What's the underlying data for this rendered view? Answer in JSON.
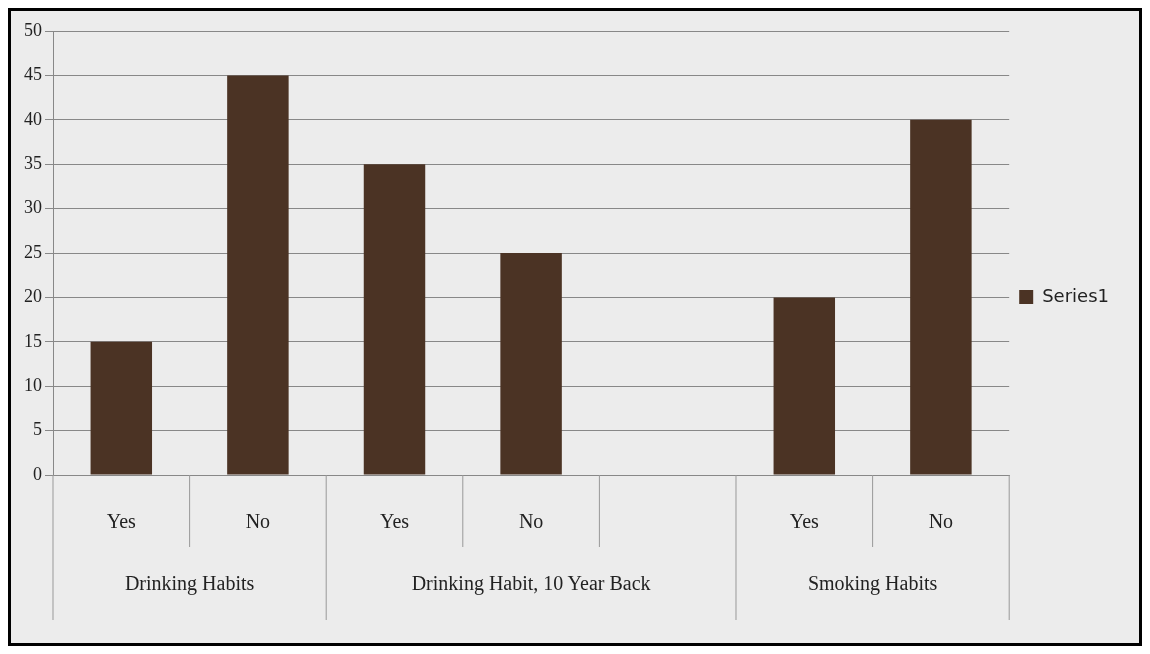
{
  "chart_data": {
    "type": "bar",
    "categories": [
      "Yes",
      "No",
      "Yes",
      "No",
      null,
      "Yes",
      "No"
    ],
    "series": [
      {
        "name": "Series1",
        "color": "#4b3324",
        "values": [
          15,
          45,
          35,
          25,
          null,
          20,
          40
        ]
      }
    ],
    "ylim": [
      0,
      50
    ],
    "yticks": [
      0,
      5,
      10,
      15,
      20,
      25,
      30,
      35,
      40,
      45,
      50
    ],
    "grid": "y",
    "legend": "right",
    "annotations": [
      "Drinking Habits",
      "Drinking Habit, 10 Year Back",
      "Smoking Habits"
    ]
  }
}
